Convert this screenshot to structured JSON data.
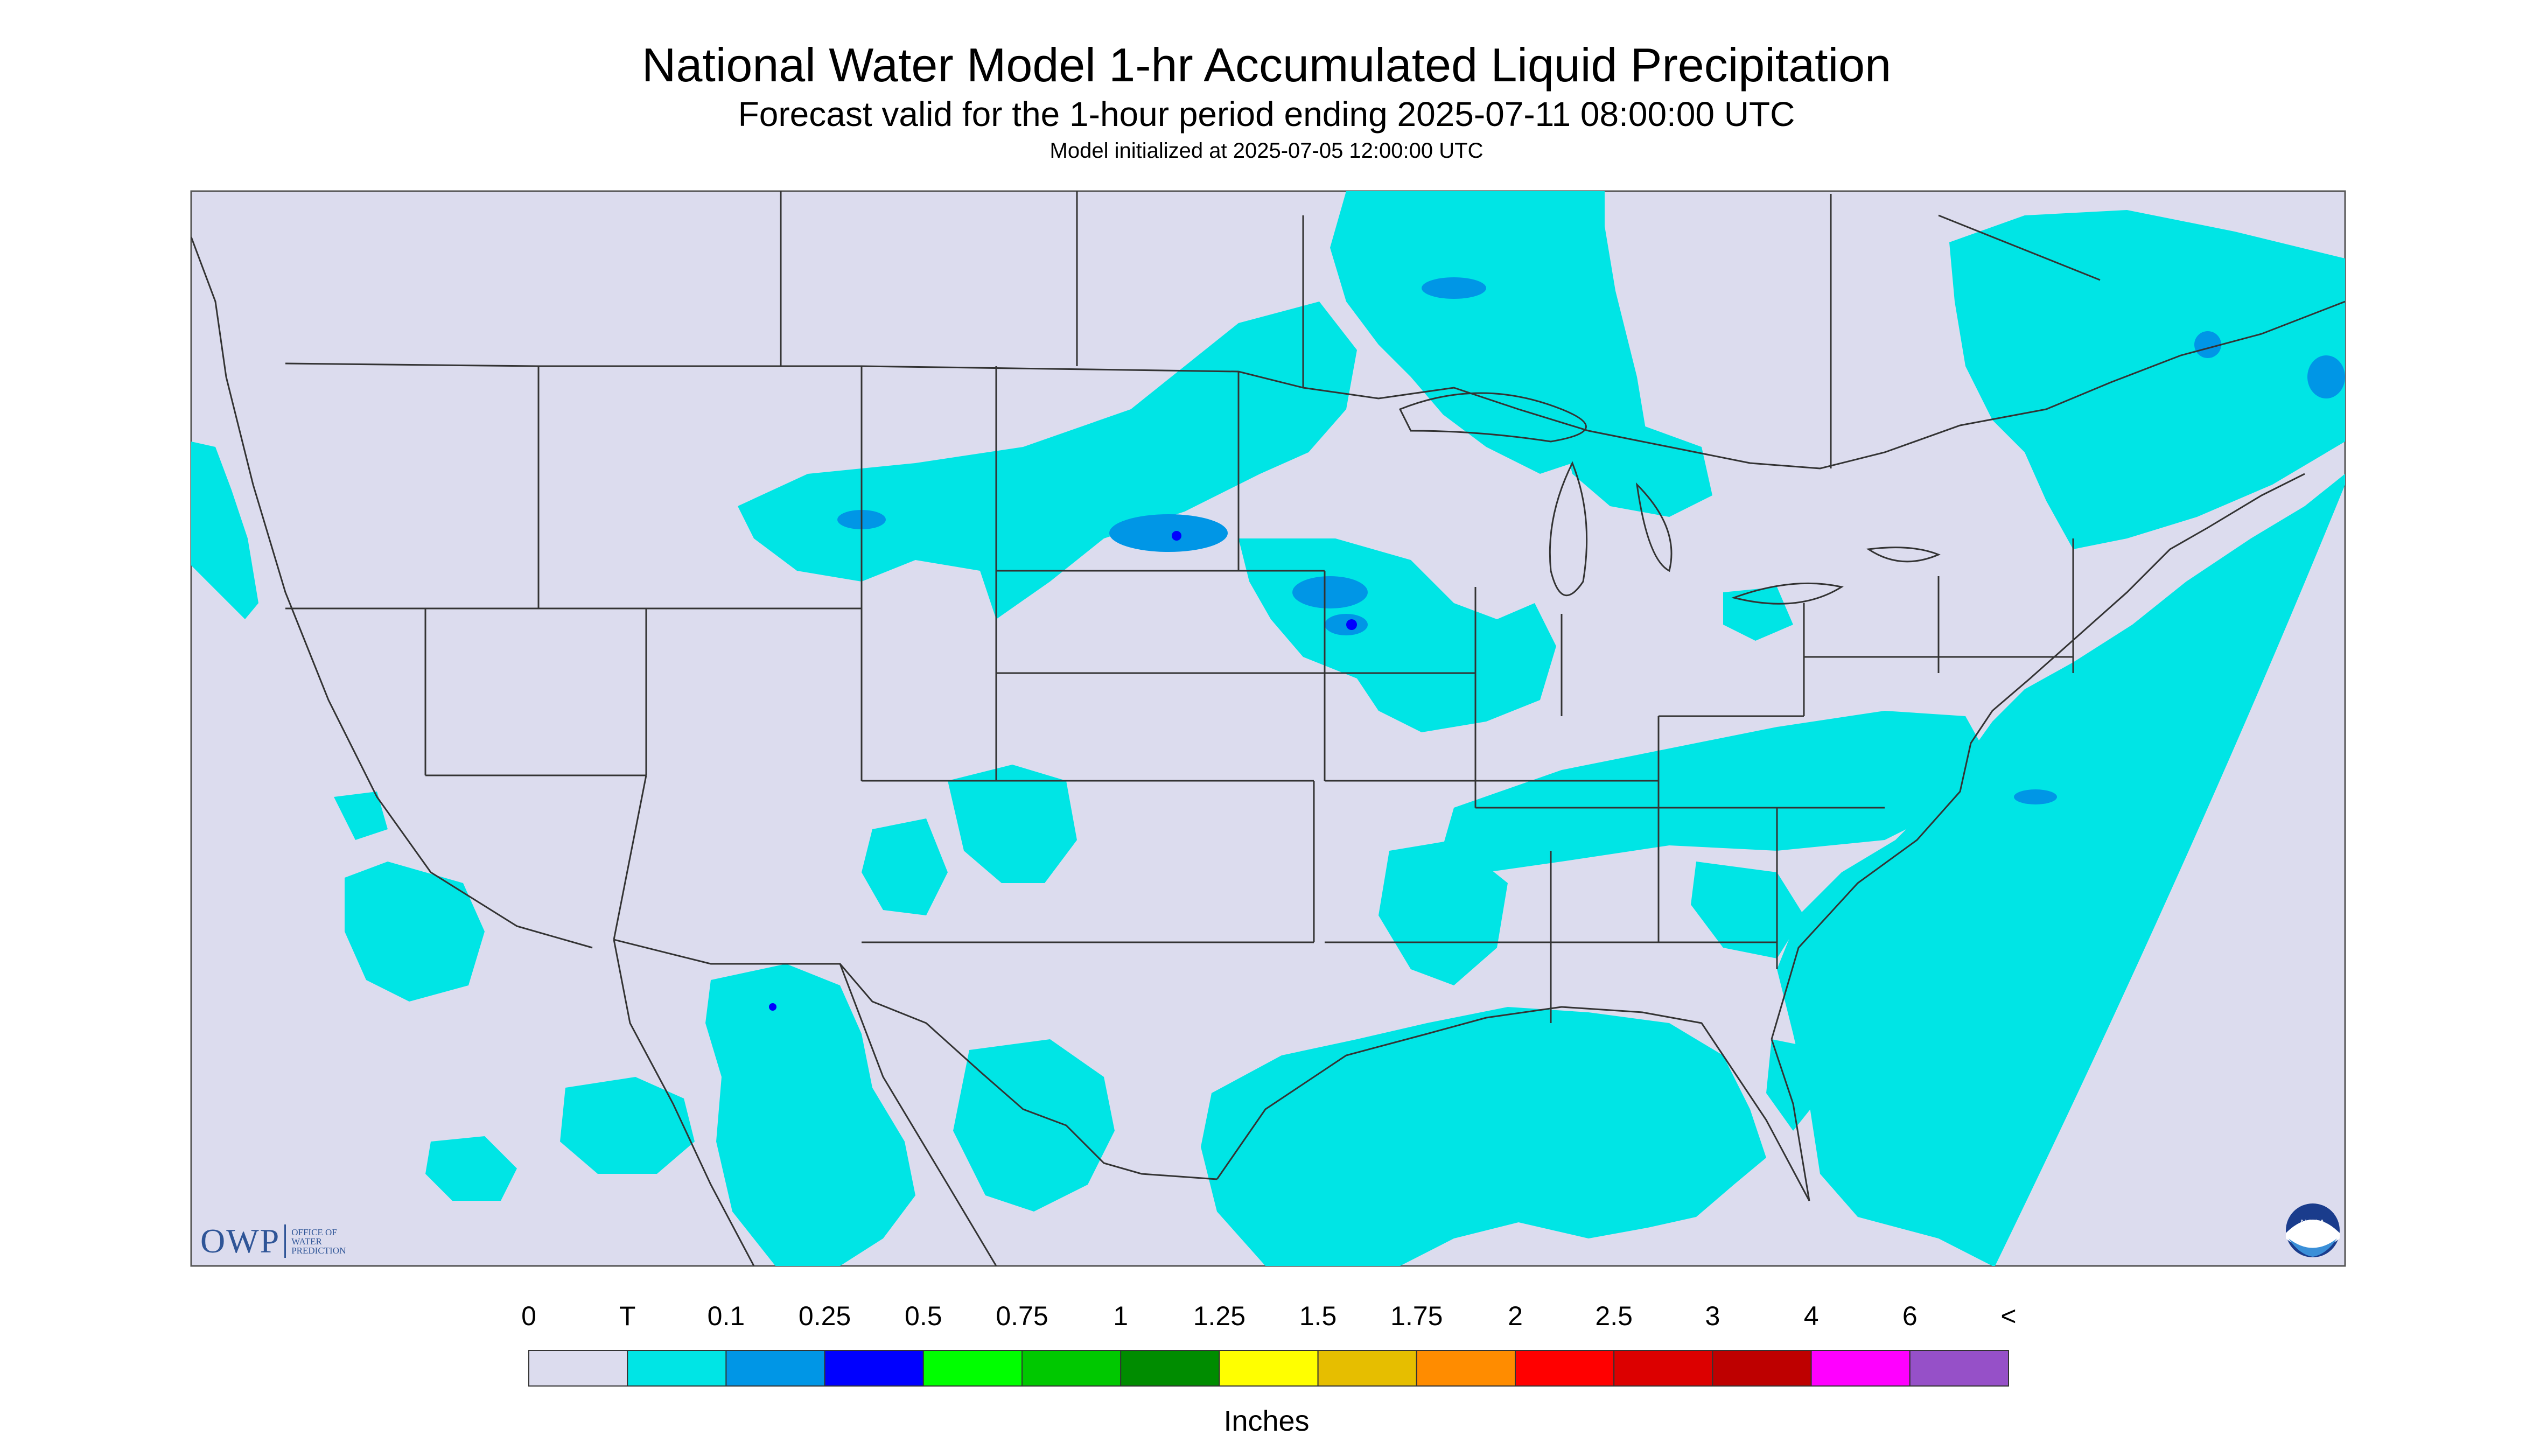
{
  "header": {
    "title": "National Water Model 1-hr Accumulated Liquid Precipitation",
    "subtitle": "Forecast valid for the 1-hour period ending 2025-07-11 08:00:00 UTC",
    "init": "Model initialized at 2025-07-05 12:00:00 UTC"
  },
  "map": {
    "region": "Continental United States",
    "background_color": "#dcdcee",
    "offgrid_color": "#dcdcee",
    "boundary_color": "#333333",
    "precip_areas": [
      {
        "name": "Atlantic coast and ocean",
        "level": "T-0.1"
      },
      {
        "name": "Gulf of Mexico coast",
        "level": "T-0.1"
      },
      {
        "name": "Upper Midwest",
        "level": "0.1-0.5"
      },
      {
        "name": "Great Lakes / Ontario",
        "level": "T-0.1"
      },
      {
        "name": "Northern New England / Quebec",
        "level": "0.1-0.25"
      },
      {
        "name": "Southwest / Mexico",
        "level": "T-0.1"
      },
      {
        "name": "Pacific Ocean off Baja",
        "level": "T"
      }
    ]
  },
  "legend": {
    "ticks": [
      "0",
      "T",
      "0.1",
      "0.25",
      "0.5",
      "0.75",
      "1",
      "1.25",
      "1.5",
      "1.75",
      "2",
      "2.5",
      "3",
      "4",
      "6",
      "<"
    ],
    "colors": [
      "#dcdcee",
      "#00e5e5",
      "#0096e6",
      "#0000ff",
      "#00ff00",
      "#00c800",
      "#008c00",
      "#ffff00",
      "#e6be00",
      "#ff8c00",
      "#ff0000",
      "#dc0000",
      "#be0000",
      "#ff00ff",
      "#9650c8"
    ],
    "units": "Inches"
  },
  "logos": {
    "owp": {
      "mark": "OWP",
      "text": "OFFICE OF WATER PREDICTION"
    },
    "noaa": {
      "text": "NOAA"
    }
  }
}
